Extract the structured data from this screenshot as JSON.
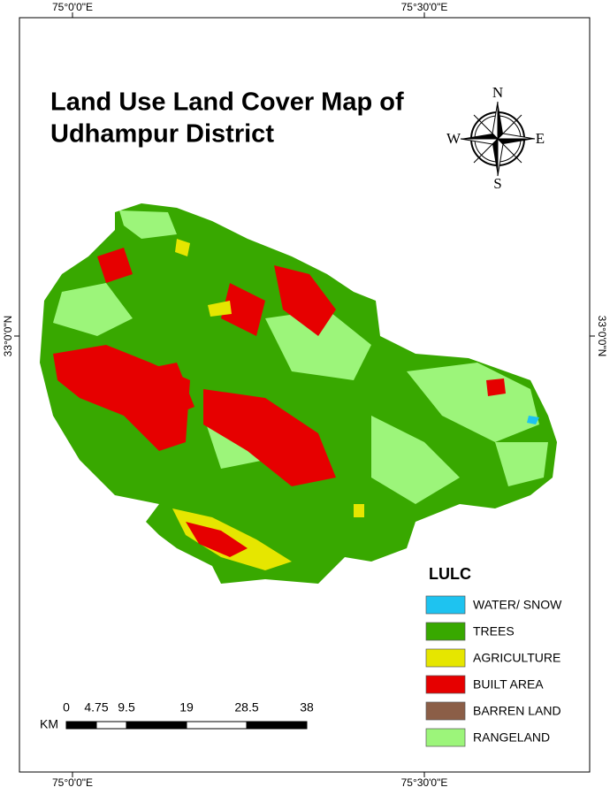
{
  "map": {
    "title_lines": [
      "Land Use Land Cover Map of",
      "Udhampur District"
    ],
    "graticule": {
      "lon_labels": [
        "75°0'0\"E",
        "75°30'0\"E"
      ],
      "lat_labels": [
        "33°0'0\"N"
      ]
    },
    "compass": {
      "n": "N",
      "e": "E",
      "s": "S",
      "w": "W"
    },
    "legend": {
      "title": "LULC",
      "items": [
        {
          "name": "WATER/ SNOW",
          "color": "#1ec3f0"
        },
        {
          "name": "TREES",
          "color": "#38a800"
        },
        {
          "name": "AGRICULTURE",
          "color": "#e6e600"
        },
        {
          "name": "BUILT AREA",
          "color": "#e60000"
        },
        {
          "name": "BARREN LAND",
          "color": "#8b5e47"
        },
        {
          "name": "RANGELAND",
          "color": "#9cf57a"
        }
      ]
    },
    "scale_bar": {
      "unit": "KM",
      "ticks": [
        0,
        4.75,
        9.5,
        19,
        28.5,
        38
      ]
    }
  }
}
